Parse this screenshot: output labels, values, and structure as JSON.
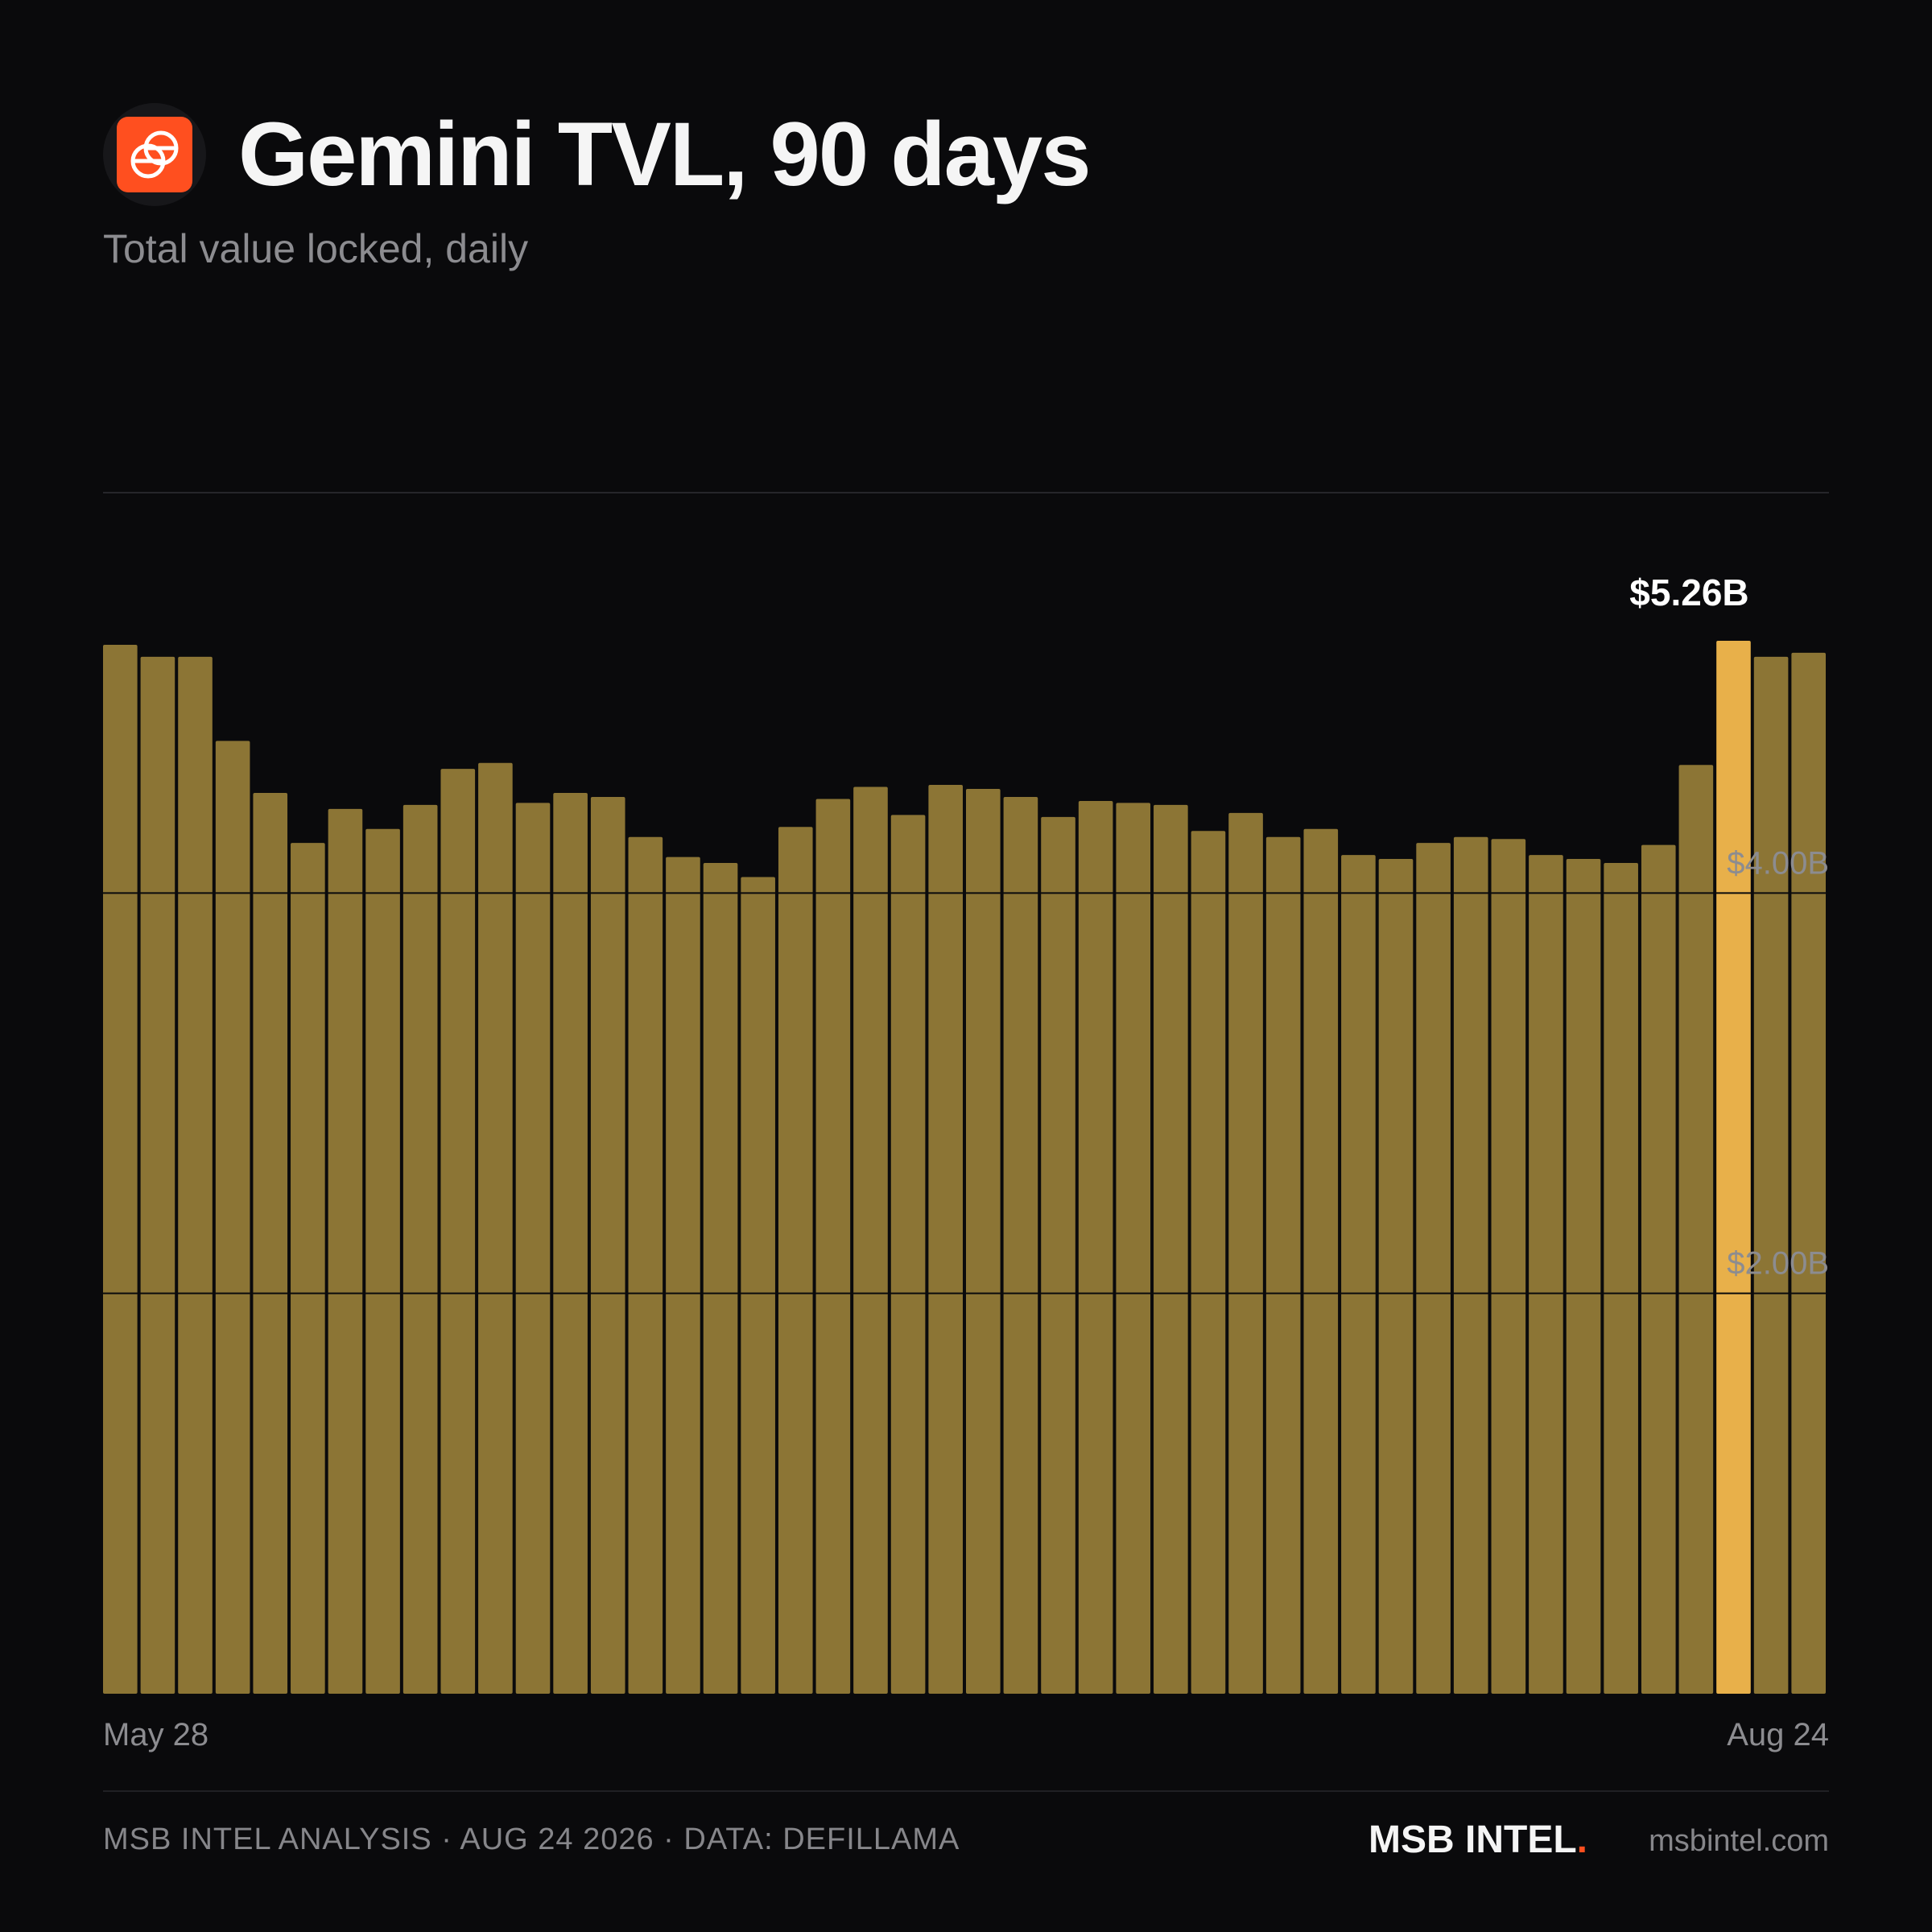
{
  "header": {
    "title": "Gemini TVL, 90 days",
    "subtitle": "Total value locked, daily",
    "logo_icon": "gemini-logo-icon",
    "logo_color": "#ff4f1f"
  },
  "chart_data": {
    "type": "bar",
    "title": "Gemini TVL, 90 days",
    "subtitle": "Total value locked, daily",
    "x_start_label": "May 28",
    "x_end_label": "Aug 24",
    "y_tick_labels": [
      "$2.00B",
      "$4.00B"
    ],
    "y_ticks": [
      2.0,
      4.0
    ],
    "ylim": [
      0,
      6.0
    ],
    "grid": true,
    "highlight_label": "$5.26B",
    "highlight_index": 43,
    "values": [
      5.24,
      5.18,
      5.18,
      4.76,
      4.5,
      4.25,
      4.42,
      4.32,
      4.44,
      4.62,
      4.65,
      4.45,
      4.5,
      4.48,
      4.28,
      4.18,
      4.15,
      4.08,
      4.33,
      4.47,
      4.53,
      4.39,
      4.54,
      4.52,
      4.48,
      4.38,
      4.46,
      4.45,
      4.44,
      4.31,
      4.4,
      4.28,
      4.32,
      4.19,
      4.17,
      4.25,
      4.28,
      4.27,
      4.19,
      4.17,
      4.15,
      4.24,
      4.64,
      5.26,
      5.18,
      5.2
    ],
    "colors": {
      "bar": "#8c7535",
      "highlight": "#e8b04a",
      "grid": "#0a0a0c",
      "top_rule": "#26262a",
      "tick_label": "#8c8c90",
      "highlight_text": "#ffffff"
    }
  },
  "footer": {
    "left_text": "MSB INTEL ANALYSIS · AUG 24 2026 · DATA: DEFILLAMA",
    "brand": "MSB INTEL",
    "brand_dot": ".",
    "site": "msbintel.com"
  }
}
